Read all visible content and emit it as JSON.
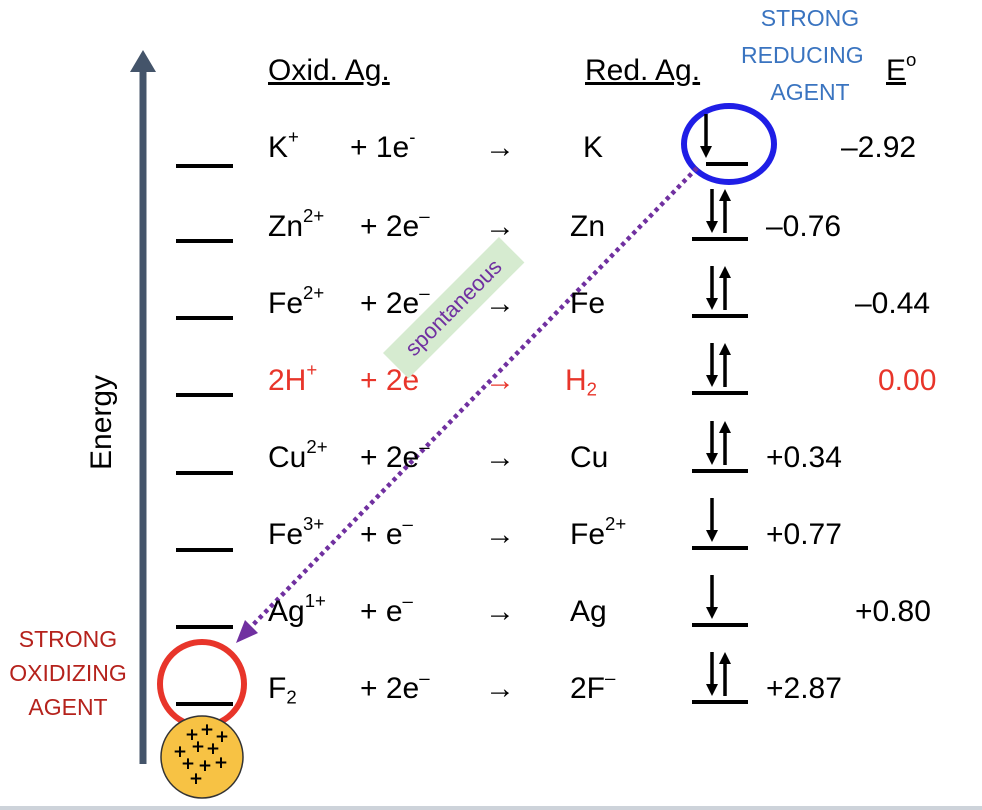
{
  "headers": {
    "oxid": "Oxid. Ag.",
    "red": "Red. Ag.",
    "strong_reducing": [
      "STRONG",
      "REDUCING",
      "AGENT"
    ],
    "eo_letter": "E",
    "eo_super": "o"
  },
  "energy_label": "Energy",
  "spontaneous_label": "spontaneous",
  "strong_oxidizing": [
    "STRONG",
    "OXIDIZING",
    "AGENT"
  ],
  "arrow_symbol": "→",
  "rows": [
    {
      "ox": "K",
      "ox_sup": "+",
      "electrons": "+  1e",
      "e_sup": "-",
      "red": "K",
      "red_sup": "",
      "red_sub": "",
      "eo": "–2.92",
      "highlight": false,
      "electron_config": "down-only"
    },
    {
      "ox": "Zn",
      "ox_sup": "2+",
      "electrons": "+  2e",
      "e_sup": "–",
      "red": "Zn",
      "red_sup": "",
      "red_sub": "",
      "eo": "–0.76",
      "highlight": false,
      "electron_config": "paired"
    },
    {
      "ox": "Fe",
      "ox_sup": "2+",
      "electrons": "+  2e",
      "e_sup": "–",
      "red": "Fe",
      "red_sup": "",
      "red_sub": "",
      "eo": "–0.44",
      "highlight": false,
      "electron_config": "paired"
    },
    {
      "ox": "2H",
      "ox_sup": "+",
      "electrons": "+  2e",
      "e_sup": "",
      "red": "H",
      "red_sup": "",
      "red_sub": "2",
      "eo": "0.00",
      "highlight": true,
      "electron_config": "paired"
    },
    {
      "ox": "Cu",
      "ox_sup": "2+",
      "electrons": "+  2e",
      "e_sup": "–",
      "red": "Cu",
      "red_sup": "",
      "red_sub": "",
      "eo": "+0.34",
      "highlight": false,
      "electron_config": "paired"
    },
    {
      "ox": "Fe",
      "ox_sup": "3+",
      "electrons": "+  e",
      "e_sup": "–",
      "red": "Fe",
      "red_sup": "2+",
      "red_sub": "",
      "eo": "+0.77",
      "highlight": false,
      "electron_config": "down-only"
    },
    {
      "ox": "Ag",
      "ox_sup": "1+",
      "electrons": "+  e",
      "e_sup": "–",
      "red": "Ag",
      "red_sup": "",
      "red_sub": "",
      "eo": "+0.80",
      "highlight": false,
      "electron_config": "down-only"
    },
    {
      "ox": "F",
      "ox_sub": "2",
      "ox_sup": "",
      "electrons": "+  2e",
      "e_sup": "–",
      "red": "2F",
      "red_sup": "–",
      "red_sub": "",
      "eo": "+2.87",
      "highlight": false,
      "electron_config": "paired"
    }
  ],
  "plus_signs": "+ + + + + + + + + +",
  "colors": {
    "energy_axis": "#44546a",
    "blue_circle": "#1f1ee6",
    "red_circle": "#e8352a",
    "spontaneous_arrow": "#7030a0",
    "spontaneous_box": "#d6ebd0",
    "orb": "#f7c244"
  }
}
